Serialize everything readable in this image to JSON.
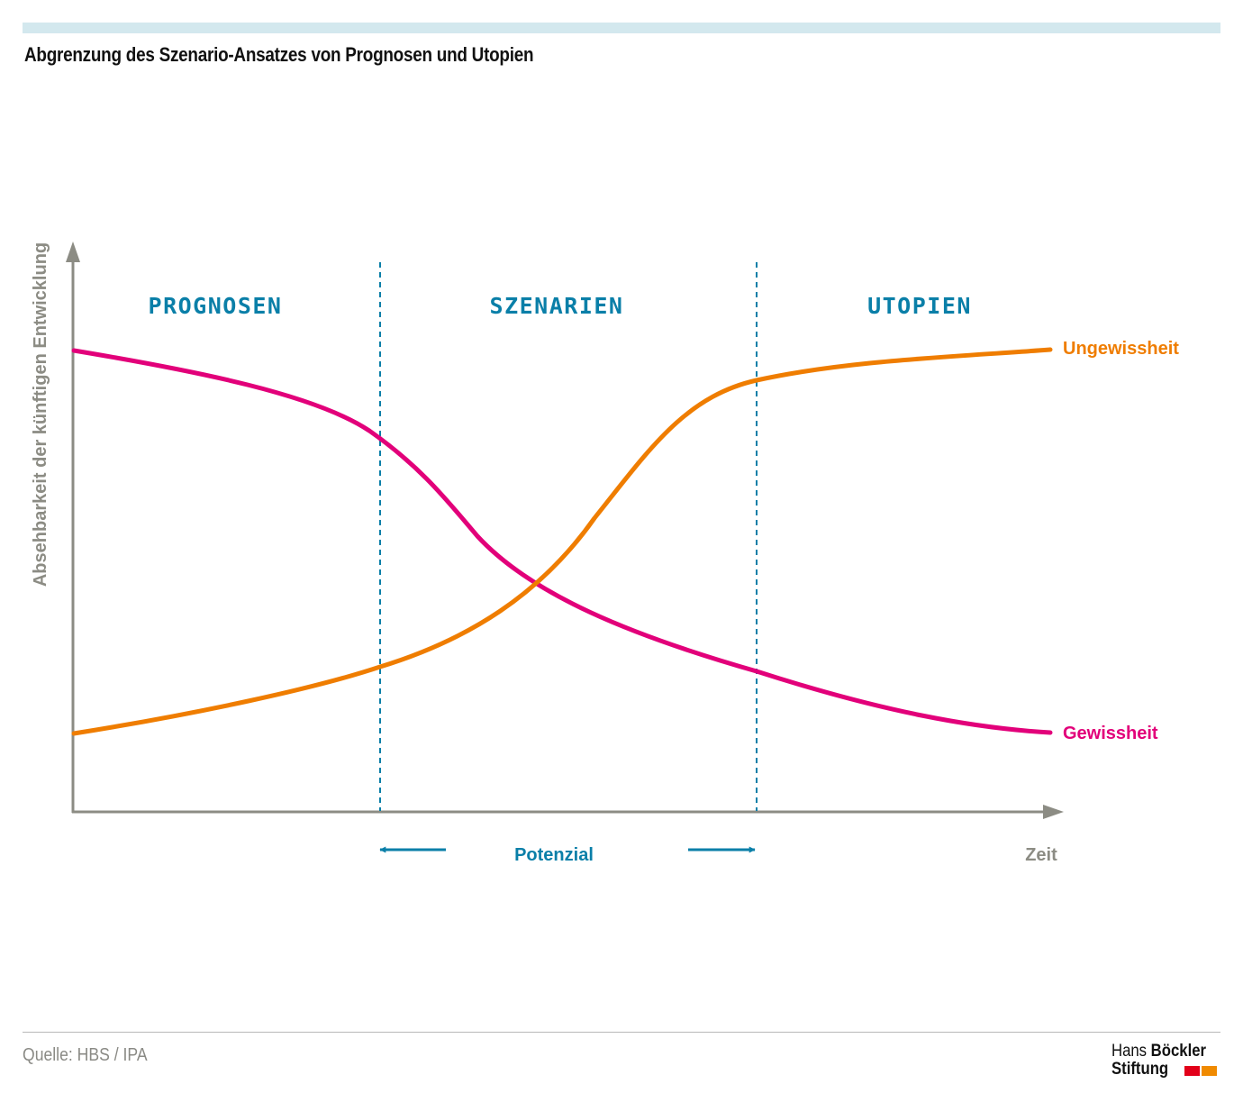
{
  "header": {
    "title": "Abgrenzung des Szenario-Ansatzes von Prognosen und Utopien"
  },
  "diagram": {
    "y_axis_label": "Absehbarkeit der künftigen Entwicklung",
    "x_axis_label": "Zeit",
    "zones": {
      "prognosen": "PROGNOSEN",
      "szenarien": "SZENARIEN",
      "utopien": "UTOPIEN"
    },
    "potential_label": "Potenzial",
    "curves": {
      "uncertainty": {
        "label": "Ungewissheit",
        "color": "#ef7d00"
      },
      "certainty": {
        "label": "Gewissheit",
        "color": "#e2007a"
      }
    },
    "colors": {
      "axis": "#8c8c84",
      "accent_blue": "#0a7fa8"
    }
  },
  "footer": {
    "source": "Quelle: HBS / IPA",
    "logo": {
      "line1_light": "Hans",
      "line1_bold": "Böckler",
      "line2": "Stiftung"
    }
  }
}
